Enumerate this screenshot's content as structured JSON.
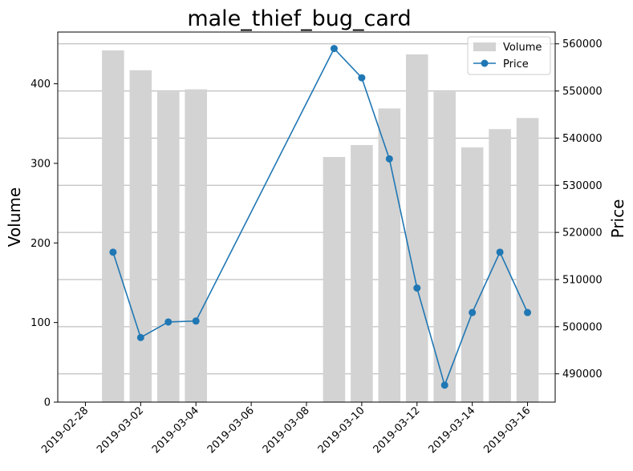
{
  "chart_data": {
    "type": "bar+line",
    "title": "male_thief_bug_card",
    "x": [
      "2019-03-01",
      "2019-03-02",
      "2019-03-03",
      "2019-03-04",
      "2019-03-09",
      "2019-03-10",
      "2019-03-11",
      "2019-03-12",
      "2019-03-13",
      "2019-03-14",
      "2019-03-15",
      "2019-03-16"
    ],
    "x_range": [
      "2019-02-27",
      "2019-03-17"
    ],
    "x_ticks": [
      "2019-02-28",
      "2019-03-02",
      "2019-03-04",
      "2019-03-06",
      "2019-03-08",
      "2019-03-10",
      "2019-03-12",
      "2019-03-14",
      "2019-03-16"
    ],
    "series": [
      {
        "name": "Volume",
        "type": "bar",
        "axis": "left",
        "color": "#d3d3d3",
        "values": [
          442,
          417,
          390,
          393,
          308,
          323,
          369,
          437,
          390,
          320,
          343,
          357
        ]
      },
      {
        "name": "Price",
        "type": "line",
        "axis": "right",
        "color": "#1f77b4",
        "marker": "circle",
        "values": [
          515800,
          497700,
          501000,
          501200,
          559000,
          552800,
          535600,
          508200,
          487600,
          503000,
          515800,
          503000
        ]
      }
    ],
    "y_left": {
      "label": "Volume",
      "range": [
        0,
        465
      ],
      "ticks": [
        0,
        100,
        200,
        300,
        400
      ]
    },
    "y_right": {
      "label": "Price",
      "range": [
        484000,
        562500
      ],
      "ticks": [
        490000,
        500000,
        510000,
        520000,
        530000,
        540000,
        550000,
        560000
      ]
    },
    "grid": "horizontal, right axis",
    "legend": {
      "position": "top-right",
      "entries": [
        "Volume",
        "Price"
      ]
    }
  }
}
